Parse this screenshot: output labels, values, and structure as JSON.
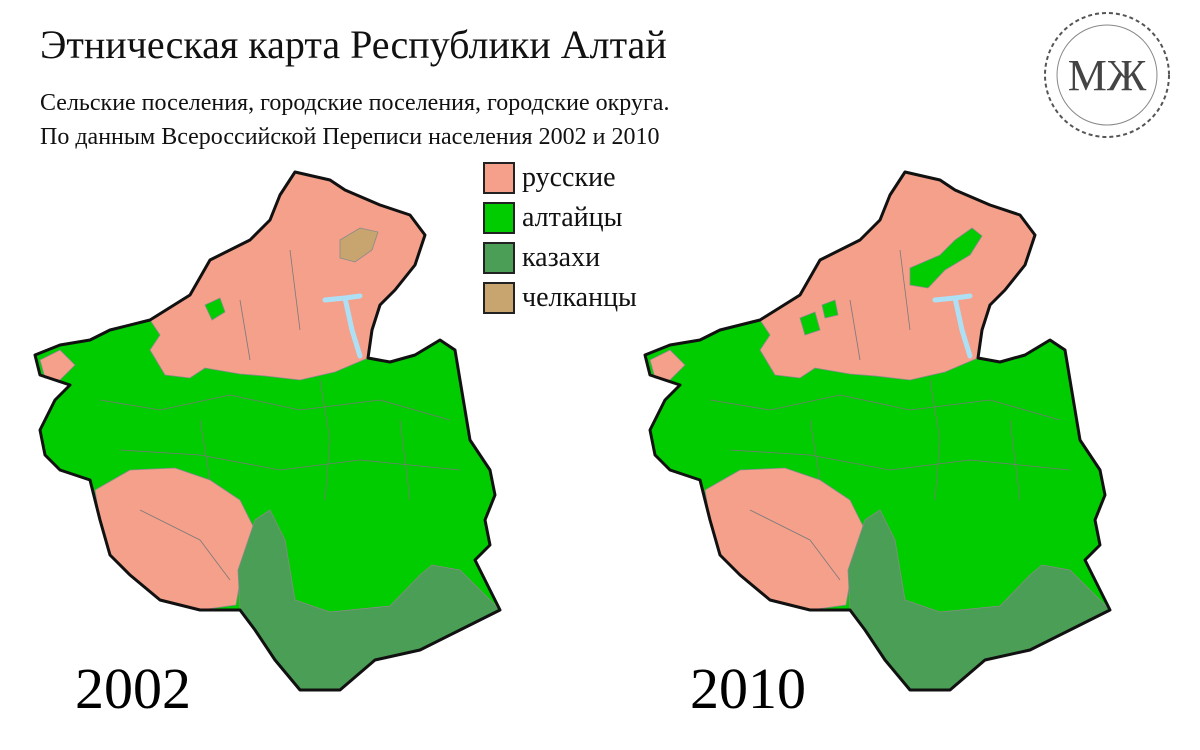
{
  "header": {
    "title": "Этническая карта Республики Алтай",
    "subtitle_lines": [
      "Сельские поселения, городские поселения, городские округа.",
      "По данным Всероссийской Переписи населения  2002 и 2010"
    ]
  },
  "legend": [
    {
      "label": "русские",
      "color": "#f4a08a"
    },
    {
      "label": "алтайцы",
      "color": "#00cc00"
    },
    {
      "label": "казахи",
      "color": "#4a9e55"
    },
    {
      "label": "челканцы",
      "color": "#c8a46e"
    }
  ],
  "maps": [
    {
      "year": "2002"
    },
    {
      "year": "2010"
    }
  ],
  "logo": "МЖ"
}
